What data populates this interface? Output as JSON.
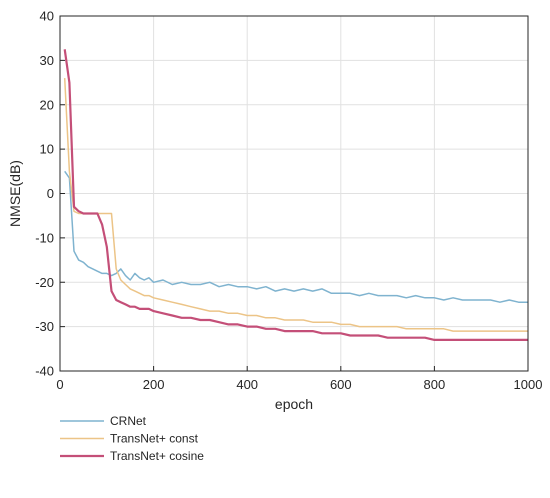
{
  "chart_data": {
    "type": "line",
    "title": "",
    "xlabel": "epoch",
    "ylabel": "NMSE(dB)",
    "xlim": [
      0,
      1000
    ],
    "ylim": [
      -40,
      40
    ],
    "xticks": [
      0,
      200,
      400,
      600,
      800,
      1000
    ],
    "yticks": [
      -40,
      -30,
      -20,
      -10,
      0,
      10,
      20,
      30,
      40
    ],
    "grid": true,
    "legend": "bottom-left, outside plot",
    "series": [
      {
        "name": "CRNet",
        "color": "#7fb3cf",
        "x": [
          10,
          20,
          30,
          40,
          50,
          60,
          70,
          80,
          90,
          100,
          110,
          120,
          130,
          140,
          150,
          160,
          170,
          180,
          190,
          200,
          220,
          240,
          260,
          280,
          300,
          320,
          340,
          360,
          380,
          400,
          420,
          440,
          460,
          480,
          500,
          520,
          540,
          560,
          580,
          600,
          620,
          640,
          660,
          680,
          700,
          720,
          740,
          760,
          780,
          800,
          820,
          840,
          860,
          880,
          900,
          920,
          940,
          960,
          980,
          1000
        ],
        "y": [
          5,
          3.5,
          -13,
          -15,
          -15.5,
          -16.5,
          -17,
          -17.5,
          -18,
          -18,
          -18.5,
          -18,
          -17,
          -18.5,
          -19.5,
          -18,
          -19,
          -19.5,
          -19,
          -20,
          -19.5,
          -20.5,
          -20,
          -20.5,
          -20.5,
          -20,
          -21,
          -20.5,
          -21,
          -21,
          -21.5,
          -21,
          -22,
          -21.5,
          -22,
          -21.5,
          -22,
          -21.5,
          -22.5,
          -22.5,
          -22.5,
          -23,
          -22.5,
          -23,
          -23,
          -23,
          -23.5,
          -23,
          -23.5,
          -23.5,
          -24,
          -23.5,
          -24,
          -24,
          -24,
          -24,
          -24.5,
          -24,
          -24.5,
          -24.5
        ]
      },
      {
        "name": "TransNet+ const",
        "color": "#ecc487",
        "x": [
          10,
          20,
          30,
          40,
          50,
          60,
          70,
          80,
          90,
          100,
          110,
          120,
          130,
          140,
          150,
          160,
          170,
          180,
          190,
          200,
          220,
          240,
          260,
          280,
          300,
          320,
          340,
          360,
          380,
          400,
          420,
          440,
          460,
          480,
          500,
          520,
          540,
          560,
          580,
          600,
          620,
          640,
          660,
          680,
          700,
          720,
          740,
          760,
          780,
          800,
          820,
          840,
          860,
          880,
          900,
          920,
          940,
          960,
          980,
          1000
        ],
        "y": [
          26,
          5,
          -4,
          -4.5,
          -4.5,
          -4.5,
          -4.5,
          -4.5,
          -4.5,
          -4.5,
          -4.5,
          -17,
          -19.5,
          -20.5,
          -21.5,
          -22,
          -22.5,
          -23,
          -23,
          -23.5,
          -24,
          -24.5,
          -25,
          -25.5,
          -26,
          -26.5,
          -26.5,
          -27,
          -27,
          -27.5,
          -27.5,
          -28,
          -28,
          -28.5,
          -28.5,
          -28.5,
          -29,
          -29,
          -29,
          -29.5,
          -29.5,
          -30,
          -30,
          -30,
          -30,
          -30,
          -30.5,
          -30.5,
          -30.5,
          -30.5,
          -30.5,
          -31,
          -31,
          -31,
          -31,
          -31,
          -31,
          -31,
          -31,
          -31
        ]
      },
      {
        "name": "TransNet+ cosine",
        "color": "#c44f78",
        "x": [
          10,
          20,
          30,
          40,
          50,
          60,
          70,
          80,
          90,
          100,
          110,
          120,
          130,
          140,
          150,
          160,
          170,
          180,
          190,
          200,
          220,
          240,
          260,
          280,
          300,
          320,
          340,
          360,
          380,
          400,
          420,
          440,
          460,
          480,
          500,
          520,
          540,
          560,
          580,
          600,
          620,
          640,
          660,
          680,
          700,
          720,
          740,
          760,
          780,
          800,
          820,
          840,
          860,
          880,
          900,
          920,
          940,
          960,
          980,
          1000
        ],
        "y": [
          32.5,
          25,
          -3,
          -4,
          -4.5,
          -4.5,
          -4.5,
          -4.5,
          -7,
          -12,
          -22,
          -24,
          -24.5,
          -25,
          -25.5,
          -25.5,
          -26,
          -26,
          -26,
          -26.5,
          -27,
          -27.5,
          -28,
          -28,
          -28.5,
          -28.5,
          -29,
          -29.5,
          -29.5,
          -30,
          -30,
          -30.5,
          -30.5,
          -31,
          -31,
          -31,
          -31,
          -31.5,
          -31.5,
          -31.5,
          -32,
          -32,
          -32,
          -32,
          -32.5,
          -32.5,
          -32.5,
          -32.5,
          -32.5,
          -33,
          -33,
          -33,
          -33,
          -33,
          -33,
          -33,
          -33,
          -33,
          -33,
          -33
        ]
      }
    ]
  }
}
